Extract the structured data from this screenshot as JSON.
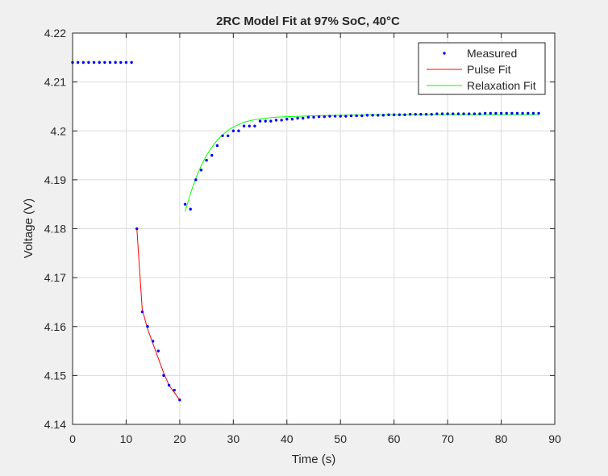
{
  "chart_data": {
    "type": "line",
    "title": "2RC Model Fit at 97% SoC, 40°C",
    "xlabel": "Time (s)",
    "ylabel": "Voltage (V)",
    "xlim": [
      0,
      90
    ],
    "ylim": [
      4.14,
      4.22
    ],
    "xticks": [
      0,
      10,
      20,
      30,
      40,
      50,
      60,
      70,
      80,
      90
    ],
    "xtick_labels": [
      "0",
      "10",
      "20",
      "30",
      "40",
      "50",
      "60",
      "70",
      "80",
      "90"
    ],
    "yticks": [
      4.14,
      4.15,
      4.16,
      4.17,
      4.18,
      4.19,
      4.2,
      4.21,
      4.22
    ],
    "ytick_labels": [
      "4.14",
      "4.15",
      "4.16",
      "4.17",
      "4.18",
      "4.19",
      "4.2",
      "4.21",
      "4.22"
    ],
    "grid": true,
    "legend_position": "top-right",
    "series": [
      {
        "name": "Measured",
        "style": "markers",
        "color": "#0000ff",
        "x": [
          0,
          1,
          2,
          3,
          4,
          5,
          6,
          7,
          8,
          9,
          10,
          11,
          12,
          13,
          14,
          15,
          16,
          17,
          18,
          19,
          20,
          21,
          22,
          23,
          24,
          25,
          26,
          27,
          28,
          29,
          30,
          31,
          32,
          33,
          34,
          35,
          36,
          37,
          38,
          39,
          40,
          41,
          42,
          43,
          44,
          45,
          46,
          47,
          48,
          49,
          50,
          51,
          52,
          53,
          54,
          55,
          56,
          57,
          58,
          59,
          60,
          61,
          62,
          63,
          64,
          65,
          66,
          67,
          68,
          69,
          70,
          71,
          72,
          73,
          74,
          75,
          76,
          77,
          78,
          79,
          80,
          81,
          82,
          83,
          84,
          85,
          86,
          87
        ],
        "y": [
          4.214,
          4.214,
          4.214,
          4.214,
          4.214,
          4.214,
          4.214,
          4.214,
          4.214,
          4.214,
          4.214,
          4.214,
          4.18,
          4.163,
          4.16,
          4.157,
          4.155,
          4.15,
          4.148,
          4.147,
          4.145,
          4.185,
          4.184,
          4.19,
          4.192,
          4.194,
          4.195,
          4.197,
          4.199,
          4.199,
          4.2,
          4.2,
          4.201,
          4.201,
          4.201,
          4.202,
          4.202,
          4.202,
          4.2022,
          4.2022,
          4.2024,
          4.2024,
          4.2026,
          4.2026,
          4.2028,
          4.2028,
          4.2029,
          4.2029,
          4.203,
          4.203,
          4.203,
          4.203,
          4.2031,
          4.2031,
          4.2031,
          4.2032,
          4.2032,
          4.2032,
          4.2032,
          4.2033,
          4.2033,
          4.2033,
          4.2033,
          4.2034,
          4.2034,
          4.2034,
          4.2034,
          4.2034,
          4.2035,
          4.2035,
          4.2035,
          4.2035,
          4.2035,
          4.2035,
          4.2035,
          4.2035,
          4.2035,
          4.2036,
          4.2036,
          4.2036,
          4.2036,
          4.2036,
          4.2036,
          4.2036,
          4.2036,
          4.2036,
          4.2036,
          4.2036
        ]
      },
      {
        "name": "Pulse Fit",
        "style": "line",
        "color": "#ff0000",
        "x": [
          12,
          13,
          14,
          15,
          16,
          17,
          18,
          19,
          20
        ],
        "y": [
          4.18,
          4.1635,
          4.1595,
          4.1565,
          4.1535,
          4.1505,
          4.148,
          4.1465,
          4.145
        ]
      },
      {
        "name": "Relaxation Fit",
        "style": "line",
        "color": "#00ff00",
        "x": [
          21,
          22,
          23,
          24,
          25,
          26,
          27,
          28,
          29,
          30,
          32,
          34,
          36,
          38,
          40,
          45,
          50,
          55,
          60,
          70,
          80,
          87
        ],
        "y": [
          4.1835,
          4.1872,
          4.1903,
          4.1929,
          4.195,
          4.1967,
          4.1981,
          4.1992,
          4.2001,
          4.2008,
          4.2018,
          4.2023,
          4.2026,
          4.2028,
          4.2029,
          4.2031,
          4.2032,
          4.2033,
          4.2033,
          4.2033,
          4.2033,
          4.2033
        ]
      }
    ]
  }
}
